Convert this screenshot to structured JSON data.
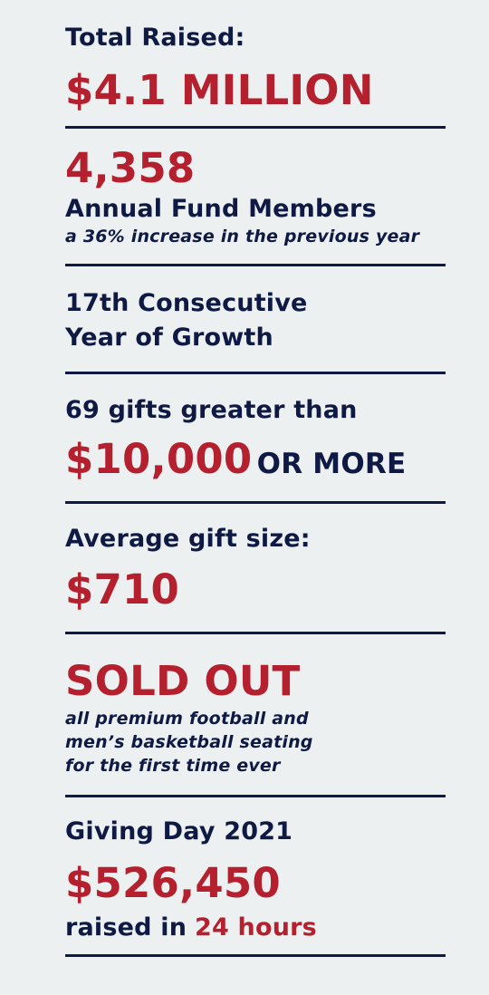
{
  "colors": {
    "background": "#ecf0f1",
    "navy": "#0f1a44",
    "red": "#b5202e"
  },
  "sections": {
    "total": {
      "label": "Total Raised:",
      "value": "$4.1 MILLION"
    },
    "members": {
      "value": "4,358",
      "label": "Annual Fund Members",
      "note": "a 36% increase in the previous year"
    },
    "growth": {
      "line1": "17th Consecutive",
      "line2": "Year of Growth"
    },
    "gifts": {
      "label": "69 gifts greater than",
      "value": "$10,000",
      "suffix": "OR MORE"
    },
    "average": {
      "label": "Average gift size:",
      "value": "$710"
    },
    "soldout": {
      "value": "SOLD OUT",
      "line1": "all premium football and",
      "line2": "men’s basketball seating",
      "line3": "for the first time ever"
    },
    "givingday": {
      "label": "Giving Day 2021",
      "value": "$526,450",
      "raised": "raised in",
      "hours": "24 hours"
    }
  }
}
